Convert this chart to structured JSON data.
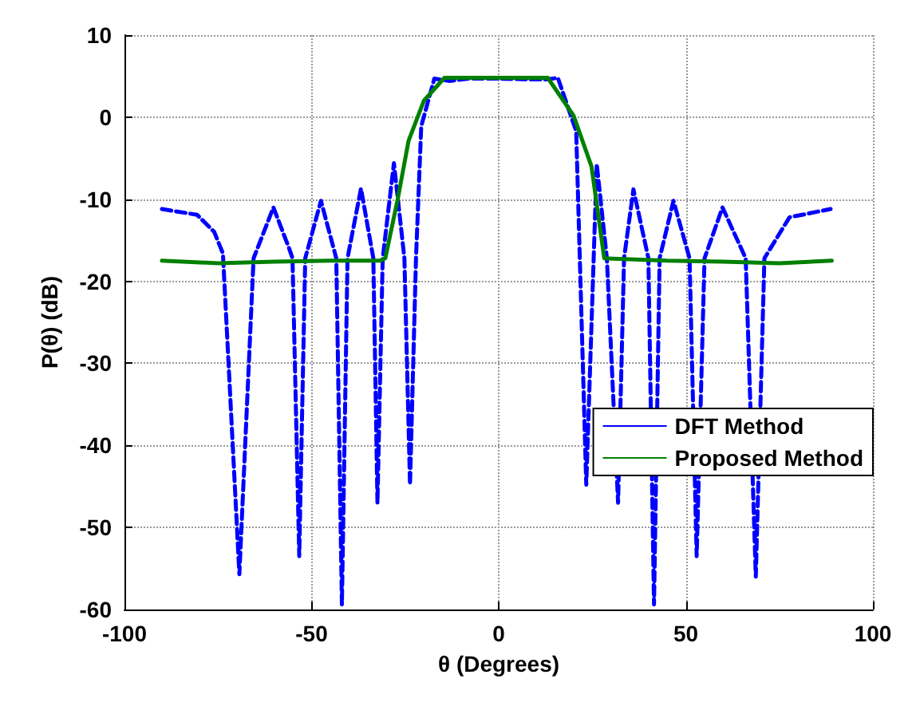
{
  "chart_data": {
    "type": "line",
    "xlabel": "θ (Degrees)",
    "ylabel": "P(θ) (dB)",
    "xlim": [
      -100,
      100
    ],
    "xticks": [
      -100,
      -50,
      0,
      50,
      100
    ],
    "ylim": [
      -60,
      10
    ],
    "yticks": [
      -60,
      -50,
      -40,
      -30,
      -20,
      -10,
      0,
      10
    ],
    "grid": true,
    "legend": "right",
    "marker": "none",
    "series": [
      {
        "name": "DFT Method",
        "color": "#0000ff",
        "line_style": "dashed",
        "x": [
          -90,
          -80.6,
          -76,
          -73.7,
          -69.3,
          -65.5,
          -60.2,
          -56,
          -55.1,
          -53.3,
          -51.7,
          -47.5,
          -43.4,
          -41.9,
          -40.4,
          -36.8,
          -33.5,
          -32.4,
          -31,
          -28,
          -25.2,
          -23.7,
          -22.1,
          -20.7,
          -17.2,
          -13.1,
          -8,
          0,
          8,
          13.1,
          15.8,
          20.7,
          23.4,
          26.2,
          28.9,
          31.9,
          33.5,
          36,
          40,
          41.5,
          43,
          46.7,
          51,
          52.9,
          55,
          59.8,
          66,
          68.7,
          71,
          77.7,
          88.7
        ],
        "values": [
          -11.2,
          -11.9,
          -14,
          -16.6,
          -55.7,
          -17.2,
          -11,
          -16,
          -17.2,
          -53.5,
          -17.2,
          -10.2,
          -17.2,
          -59.4,
          -17.2,
          -8.7,
          -17.2,
          -47,
          -17.2,
          -5.6,
          -17.2,
          -44.8,
          -17.2,
          -1.1,
          4.7,
          4.4,
          4.7,
          4.7,
          4.6,
          4.6,
          4.8,
          -1.7,
          -44.8,
          -5.7,
          -17.2,
          -47,
          -17.2,
          -8.8,
          -17.2,
          -59.4,
          -17.2,
          -10.2,
          -17.2,
          -53.5,
          -17.2,
          -11,
          -17.2,
          -56,
          -17.2,
          -12.2,
          -11.2
        ]
      },
      {
        "name": "Proposed Method",
        "color": "#008000",
        "line_style": "solid",
        "x": [
          -90,
          -75,
          -60,
          -45,
          -31.7,
          -30.3,
          -26.9,
          -24.1,
          -20,
          -14.5,
          0,
          13.1,
          20,
          24.8,
          28.2,
          45,
          60,
          75,
          89
        ],
        "values": [
          -17.5,
          -17.8,
          -17.6,
          -17.5,
          -17.5,
          -17.2,
          -9.8,
          -2.9,
          2,
          4.8,
          4.8,
          4.8,
          0.2,
          -6,
          -17.2,
          -17.5,
          -17.6,
          -17.8,
          -17.5
        ]
      }
    ]
  }
}
